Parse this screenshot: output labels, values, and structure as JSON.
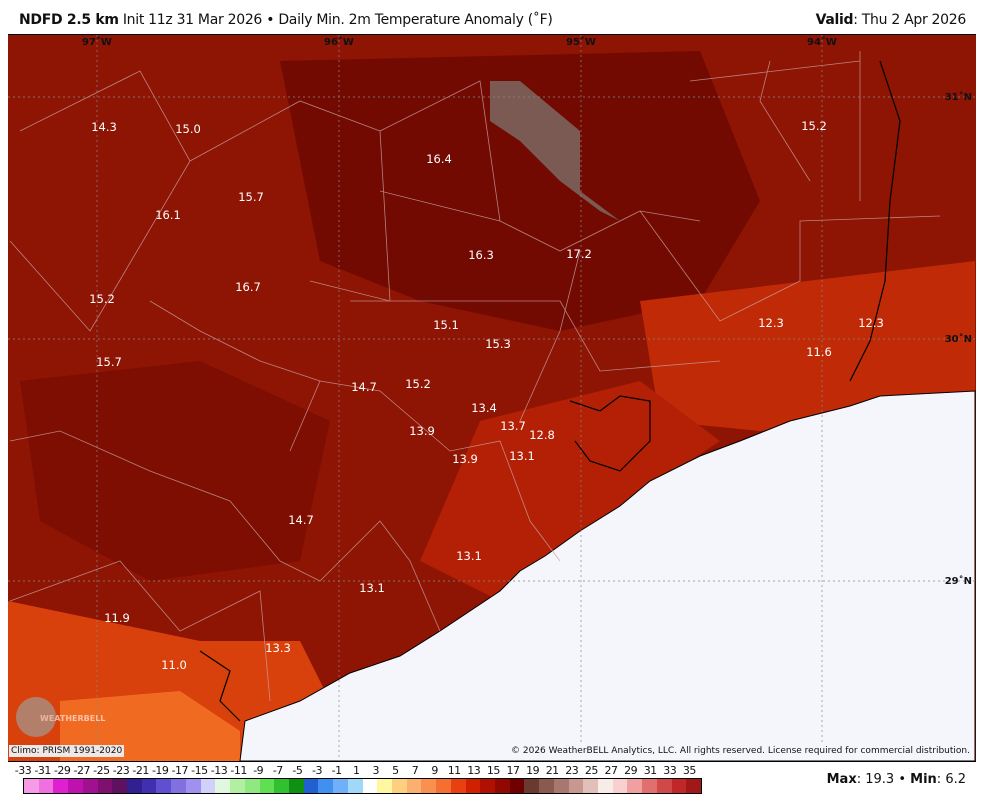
{
  "header": {
    "model": "NDFD 2.5 km",
    "init": "Init 11z 31 Mar 2026",
    "separator": "•",
    "product": "Daily Min. 2m Temperature Anomaly (˚F)",
    "valid_label": "Valid",
    "valid_value": ": Thu 2 Apr 2026"
  },
  "map": {
    "longitudes": [
      "97˚W",
      "96˚W",
      "95˚W",
      "94˚W"
    ],
    "latitudes": [
      "31˚N",
      "30˚N",
      "29˚N"
    ],
    "values": [
      "14.3",
      "15.0",
      "16.4",
      "15.2",
      "15.7",
      "16.1",
      "16.3",
      "17.2",
      "16.7",
      "15.2",
      "15.1",
      "15.3",
      "12.3",
      "12.3",
      "11.6",
      "15.7",
      "14.7",
      "15.2",
      "13.4",
      "13.7",
      "12.8",
      "13.9",
      "13.9",
      "13.1",
      "14.7",
      "13.1",
      "13.1",
      "11.9",
      "13.3",
      "11.0"
    ],
    "logo": "WEATHERBELL"
  },
  "footer": {
    "climo": "Climo: PRISM 1991-2020",
    "copyright": "© 2026 WeatherBELL Analytics, LLC. All rights reserved. License required for commercial distribution."
  },
  "colorbar": {
    "labels": [
      "-33",
      "-31",
      "-29",
      "-27",
      "-25",
      "-23",
      "-21",
      "-19",
      "-17",
      "-15",
      "-13",
      "-11",
      "-9",
      "-7",
      "-5",
      "-3",
      "-1",
      "1",
      "3",
      "5",
      "7",
      "9",
      "11",
      "13",
      "15",
      "17",
      "19",
      "21",
      "23",
      "25",
      "27",
      "29",
      "31",
      "33",
      "35"
    ],
    "colors": [
      "#f59be8",
      "#f070e0",
      "#e020d0",
      "#c010b0",
      "#a01090",
      "#801070",
      "#601060",
      "#302090",
      "#4030b0",
      "#6050d0",
      "#8070e0",
      "#a090f0",
      "#d0d0f8",
      "#e0f8e0",
      "#b0f0a0",
      "#90e880",
      "#60e050",
      "#30c030",
      "#109010",
      "#2060d0",
      "#4090f0",
      "#70b0f8",
      "#a0d8f8",
      "#ffffff",
      "#fff8a0",
      "#fdd080",
      "#fcb070",
      "#fa9050",
      "#f57030",
      "#e84010",
      "#d02000",
      "#b01000",
      "#900800",
      "#700000",
      "#6a3a30",
      "#8a5a50",
      "#a87870",
      "#c89890",
      "#e0c0b8",
      "#f8ece8",
      "#f8d0d0",
      "#f0a0a0",
      "#e07070",
      "#d04848",
      "#c02828",
      "#a01818"
    ],
    "max_label": "Max",
    "max_value": "19.3",
    "min_label": "Min",
    "min_value": "6.2",
    "separator": "•"
  },
  "colors": {
    "dark": "#7a0c02",
    "mid": "#9a1a04",
    "warm": "#c52a06",
    "bright": "#e24a10",
    "gulf": "#f4f6fc"
  }
}
